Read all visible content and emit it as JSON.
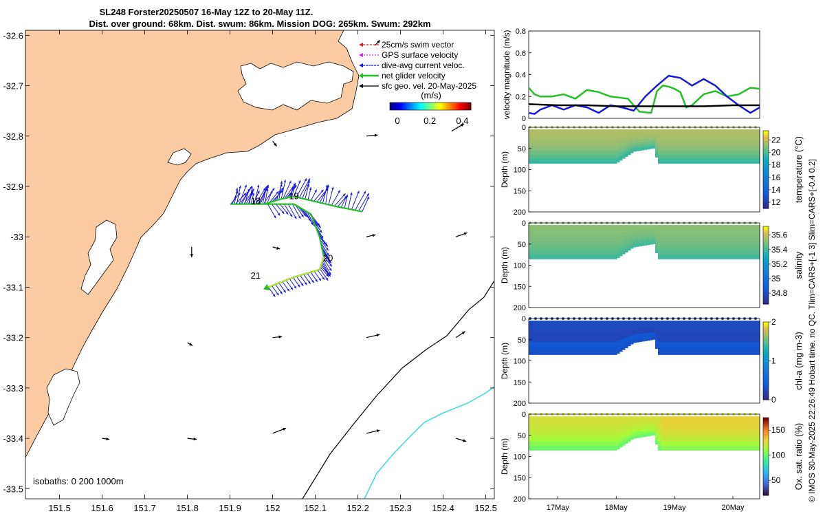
{
  "title_line1": "SL248 Forster20250507 16-May 12Z to 20-May 11Z.",
  "title_line2": "Dist. over ground: 68km. Dist. swum: 86km. Mission DOG: 265km. Swum: 292km",
  "side_note": "© IMOS 30-May-2025 22:26:49 Hobart time. no QC. Tlim=CARS+[-1 3] Slim=CARS+[-0.4 0.2]",
  "colors": {
    "land": "#fccba1",
    "glider_track": "#22c022",
    "dive_avg": "#1818dd",
    "gps": "#e020e0",
    "swim": "#e02020",
    "geo": "#000000",
    "isobath_200": "#000000",
    "isobath_1000": "#33dddd"
  },
  "chart_data": [
    {
      "type": "map",
      "x_ticks": [
        "151.5",
        "151.6",
        "151.7",
        "151.8",
        "151.9",
        "152",
        "152.1",
        "152.2",
        "152.3",
        "152.4",
        "152.5"
      ],
      "x_values": [
        151.5,
        151.6,
        151.7,
        151.8,
        151.9,
        152.0,
        152.1,
        152.2,
        152.3,
        152.4,
        152.5
      ],
      "y_ticks": [
        "-32.6",
        "-32.7",
        "-32.8",
        "-32.9",
        "-33",
        "-33.1",
        "-33.2",
        "-33.3",
        "-33.4",
        "-33.5"
      ],
      "y_values": [
        -32.6,
        -32.7,
        -32.8,
        -32.9,
        -33.0,
        -33.1,
        -33.2,
        -33.3,
        -33.4,
        -33.5
      ],
      "xlim": [
        151.42,
        152.52
      ],
      "ylim": [
        -33.52,
        -32.59
      ],
      "legend": [
        {
          "label": "25cm/s swim vector",
          "color": "#e02020"
        },
        {
          "label": "GPS surface velocity",
          "color": "#e020e0"
        },
        {
          "label": "dive-avg current veloc.",
          "color": "#1818dd"
        },
        {
          "label": "net glider velocity",
          "color": "#22c022"
        },
        {
          "label": "sfc geo. vel. 20-May-2025",
          "color": "#000000"
        }
      ],
      "colorbar": {
        "unit": "(m/s)",
        "ticks": [
          "0",
          "0.2",
          "0.4"
        ],
        "range": [
          0,
          0.5
        ]
      },
      "isobaths_label": "isobaths: 0   200  1000m",
      "day_labels": [
        {
          "text": "18",
          "lon": 151.96,
          "lat": -32.935
        },
        {
          "text": "19",
          "lon": 152.05,
          "lat": -32.925
        },
        {
          "text": "20",
          "lon": 152.13,
          "lat": -33.048
        },
        {
          "text": "21",
          "lon": 151.96,
          "lat": -33.083
        }
      ],
      "geo_vectors": [
        {
          "lon": 152.0,
          "lat": -32.81,
          "u": 0.04,
          "v": -0.05
        },
        {
          "lon": 152.22,
          "lat": -32.8,
          "u": 0.11,
          "v": 0.01
        },
        {
          "lon": 152.42,
          "lat": -32.79,
          "u": 0.12,
          "v": 0.07
        },
        {
          "lon": 151.81,
          "lat": -33.02,
          "u": 0.0,
          "v": -0.1
        },
        {
          "lon": 152.0,
          "lat": -33.02,
          "u": 0.07,
          "v": -0.02
        },
        {
          "lon": 152.22,
          "lat": -33.0,
          "u": 0.09,
          "v": 0.02
        },
        {
          "lon": 152.43,
          "lat": -33.0,
          "u": 0.11,
          "v": 0.04
        },
        {
          "lon": 151.8,
          "lat": -33.21,
          "u": 0.05,
          "v": -0.03
        },
        {
          "lon": 152.0,
          "lat": -33.2,
          "u": 0.09,
          "v": 0.01
        },
        {
          "lon": 152.22,
          "lat": -33.2,
          "u": 0.13,
          "v": 0.03
        },
        {
          "lon": 152.43,
          "lat": -33.2,
          "u": 0.09,
          "v": 0.06
        },
        {
          "lon": 151.6,
          "lat": -33.4,
          "u": 0.07,
          "v": -0.01
        },
        {
          "lon": 151.8,
          "lat": -33.4,
          "u": 0.09,
          "v": -0.01
        },
        {
          "lon": 152.0,
          "lat": -33.39,
          "u": 0.13,
          "v": 0.05
        },
        {
          "lon": 152.22,
          "lat": -33.39,
          "u": 0.13,
          "v": 0.03
        },
        {
          "lon": 152.43,
          "lat": -33.4,
          "u": 0.1,
          "v": -0.03
        },
        {
          "lon": 152.24,
          "lat": -32.62,
          "u": 0.05,
          "v": 0.05
        }
      ],
      "glider_track": [
        {
          "lon": 152.21,
          "lat": -32.95
        },
        {
          "lon": 152.15,
          "lat": -32.94
        },
        {
          "lon": 152.1,
          "lat": -32.93
        },
        {
          "lon": 152.05,
          "lat": -32.92
        },
        {
          "lon": 152.02,
          "lat": -32.925
        },
        {
          "lon": 151.98,
          "lat": -32.935
        },
        {
          "lon": 151.94,
          "lat": -32.935
        },
        {
          "lon": 151.9,
          "lat": -32.935
        },
        {
          "lon": 151.98,
          "lat": -32.935
        },
        {
          "lon": 152.05,
          "lat": -32.935
        },
        {
          "lon": 152.09,
          "lat": -32.955
        },
        {
          "lon": 152.11,
          "lat": -33.0
        },
        {
          "lon": 152.12,
          "lat": -33.04
        },
        {
          "lon": 152.11,
          "lat": -33.065
        },
        {
          "lon": 152.05,
          "lat": -33.08
        },
        {
          "lon": 151.99,
          "lat": -33.1
        }
      ],
      "dive_avg": {
        "count": 110,
        "description": "dive-averaged current vectors along the track"
      }
    },
    {
      "type": "line",
      "ylabel": "velocity magnitude (m/s)",
      "yticks": [
        "0",
        "0.2",
        "0.4",
        "0.6",
        "0.8"
      ],
      "ylim": [
        0,
        0.8
      ],
      "xlim": [
        16.5,
        20.46
      ],
      "series": [
        {
          "name": "net glider velocity",
          "color": "#22c022",
          "x": [
            16.5,
            16.6,
            16.7,
            16.9,
            17.1,
            17.3,
            17.5,
            17.7,
            17.9,
            18.2,
            18.4,
            18.6,
            18.7,
            18.8,
            18.9,
            19.0,
            19.1,
            19.2,
            19.3,
            19.5,
            19.7,
            19.9,
            20.1,
            20.3,
            20.46
          ],
          "y": [
            0.28,
            0.22,
            0.2,
            0.2,
            0.22,
            0.18,
            0.26,
            0.24,
            0.2,
            0.18,
            0.06,
            0.05,
            0.25,
            0.3,
            0.29,
            0.27,
            0.24,
            0.1,
            0.12,
            0.22,
            0.25,
            0.2,
            0.22,
            0.28,
            0.27
          ]
        },
        {
          "name": "dive-avg current veloc.",
          "color": "#1818dd",
          "x": [
            16.5,
            16.6,
            16.7,
            16.9,
            17.1,
            17.3,
            17.5,
            17.7,
            17.9,
            18.1,
            18.3,
            18.5,
            18.7,
            18.9,
            19.1,
            19.3,
            19.5,
            19.7,
            19.9,
            20.1,
            20.3,
            20.46
          ],
          "y": [
            0.05,
            0.04,
            0.08,
            0.12,
            0.08,
            0.12,
            0.1,
            0.05,
            0.12,
            0.1,
            0.07,
            0.2,
            0.3,
            0.39,
            0.37,
            0.3,
            0.36,
            0.3,
            0.2,
            0.12,
            0.05,
            0.1
          ]
        },
        {
          "name": "sfc geo. vel.",
          "color": "#000000",
          "x": [
            16.5,
            17.0,
            17.5,
            18.0,
            18.5,
            19.0,
            19.5,
            20.0,
            20.46
          ],
          "y": [
            0.13,
            0.12,
            0.12,
            0.11,
            0.11,
            0.11,
            0.11,
            0.12,
            0.12
          ]
        }
      ]
    },
    {
      "type": "heatmap",
      "variable": "temperature",
      "colorbar_label": "temperature (°C)",
      "ylabel": "Depth (m)",
      "yticks": [
        "0",
        "50",
        "100",
        "150",
        "200"
      ],
      "ylim": [
        0,
        200
      ],
      "clim": [
        11,
        23.5
      ],
      "cticks": [
        "12",
        "14",
        "16",
        "18",
        "20",
        "22"
      ],
      "surface_value": 21.8,
      "bottom_value": 19.5
    },
    {
      "type": "heatmap",
      "variable": "salinity",
      "colorbar_label": "salinity",
      "ylabel": "Depth (m)",
      "yticks": [
        "0",
        "50",
        "100",
        "150",
        "200"
      ],
      "ylim": [
        0,
        200
      ],
      "clim": [
        34.65,
        35.72
      ],
      "cticks": [
        "34.8",
        "35",
        "35.2",
        "35.4",
        "35.6"
      ],
      "surface_value": 35.52,
      "bottom_value": 35.4
    },
    {
      "type": "heatmap",
      "variable": "chl-a",
      "colorbar_label": "chl-a (mg m-3)",
      "ylabel": "Depth (m)",
      "yticks": [
        "0",
        "50",
        "100",
        "150",
        "200"
      ],
      "ylim": [
        0,
        200
      ],
      "clim": [
        0,
        2
      ],
      "cticks": [
        "0",
        "1",
        "2"
      ],
      "surface_value": 0.25,
      "bottom_value": 0.15
    },
    {
      "type": "heatmap",
      "variable": "oxygen saturation",
      "colorbar_label": "Ox. sat. ratio (%)",
      "ylabel": "Depth (m)",
      "yticks": [
        "0",
        "50",
        "100",
        "150",
        "200"
      ],
      "ylim": [
        0,
        200
      ],
      "clim": [
        20,
        175
      ],
      "cticks": [
        "50",
        "100",
        "150"
      ],
      "surface_value": 125,
      "bottom_value": 98,
      "xticks": [
        "17May",
        "18May",
        "19May",
        "20May"
      ],
      "xtick_values": [
        17,
        18,
        19,
        20
      ]
    }
  ]
}
